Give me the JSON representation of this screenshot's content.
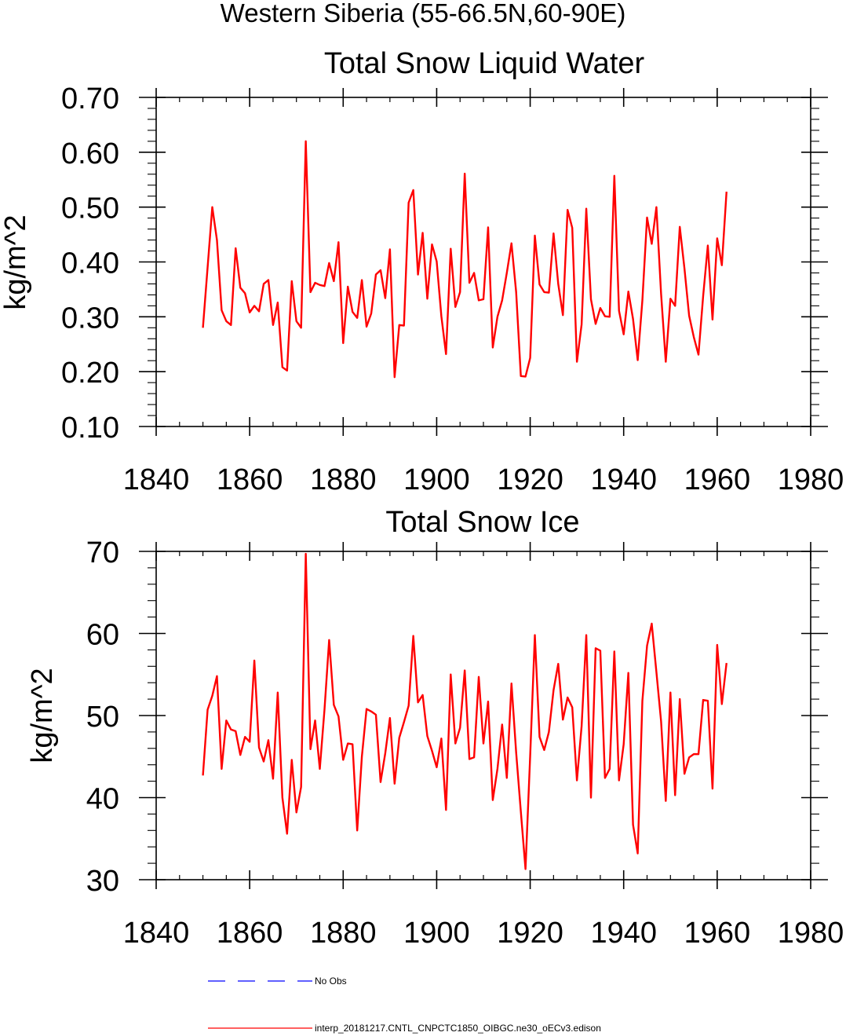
{
  "suptitle": "Western Siberia (55-66.5N,60-90E)",
  "colors": {
    "model": "#ff0000",
    "obs": "#0000ff",
    "axis": "#000000"
  },
  "legend": [
    {
      "label": "No Obs",
      "style": "dashed",
      "color": "#0000ff"
    },
    {
      "label": "interp_20181217.CNTL_CNPCTC1850_OIBGC.ne30_oECv3.edison",
      "style": "solid",
      "color": "#ff0000"
    }
  ],
  "chart_data": [
    {
      "type": "line",
      "title": "Total Snow Liquid Water",
      "xlabel": "",
      "ylabel": "kg/m^2",
      "xlim": [
        1840,
        1980
      ],
      "ylim": [
        0.1,
        0.7
      ],
      "xticks": [
        1840,
        1860,
        1880,
        1900,
        1920,
        1940,
        1960,
        1980
      ],
      "xtick_labels": [
        "1840",
        "1860",
        "1880",
        "1900",
        "1920",
        "1940",
        "1960",
        "1980"
      ],
      "yticks": [
        0.1,
        0.2,
        0.3,
        0.4,
        0.5,
        0.6,
        0.7
      ],
      "ytick_labels": [
        "0.10",
        "0.20",
        "0.30",
        "0.40",
        "0.50",
        "0.60",
        "0.70"
      ],
      "series": [
        {
          "name": "interp_20181217.CNTL_CNPCTC1850_OIBGC.ne30_oECv3.edison",
          "x": [
            1850,
            1851,
            1852,
            1853,
            1854,
            1855,
            1856,
            1857,
            1858,
            1859,
            1860,
            1861,
            1862,
            1863,
            1864,
            1865,
            1866,
            1867,
            1868,
            1869,
            1870,
            1871,
            1872,
            1873,
            1874,
            1875,
            1876,
            1877,
            1878,
            1879,
            1880,
            1881,
            1882,
            1883,
            1884,
            1885,
            1886,
            1887,
            1888,
            1889,
            1890,
            1891,
            1892,
            1893,
            1894,
            1895,
            1896,
            1897,
            1898,
            1899,
            1900,
            1901,
            1902,
            1903,
            1904,
            1905,
            1906,
            1907,
            1908,
            1909,
            1910,
            1911,
            1912,
            1913,
            1914,
            1915,
            1916,
            1917,
            1918,
            1919,
            1920,
            1921,
            1922,
            1923,
            1924,
            1925,
            1926,
            1927,
            1928,
            1929,
            1930,
            1931,
            1932,
            1933,
            1934,
            1935,
            1936,
            1937,
            1938,
            1939,
            1940,
            1941,
            1942,
            1943,
            1944,
            1945,
            1946,
            1947,
            1948,
            1949,
            1950,
            1951,
            1952,
            1953,
            1954,
            1955,
            1956,
            1957,
            1958,
            1959,
            1960,
            1961,
            1962
          ],
          "values": [
            0.28,
            0.39,
            0.5,
            0.44,
            0.312,
            0.292,
            0.285,
            0.425,
            0.353,
            0.343,
            0.308,
            0.32,
            0.31,
            0.36,
            0.367,
            0.285,
            0.326,
            0.208,
            0.202,
            0.365,
            0.292,
            0.28,
            0.62,
            0.345,
            0.362,
            0.358,
            0.356,
            0.398,
            0.365,
            0.436,
            0.252,
            0.355,
            0.309,
            0.298,
            0.367,
            0.282,
            0.306,
            0.377,
            0.385,
            0.334,
            0.423,
            0.19,
            0.285,
            0.284,
            0.508,
            0.531,
            0.377,
            0.453,
            0.333,
            0.432,
            0.401,
            0.301,
            0.232,
            0.424,
            0.318,
            0.345,
            0.561,
            0.362,
            0.38,
            0.33,
            0.332,
            0.463,
            0.244,
            0.3,
            0.33,
            0.38,
            0.434,
            0.345,
            0.192,
            0.191,
            0.225,
            0.448,
            0.359,
            0.345,
            0.344,
            0.452,
            0.36,
            0.303,
            0.495,
            0.462,
            0.218,
            0.286,
            0.497,
            0.332,
            0.287,
            0.316,
            0.301,
            0.3,
            0.557,
            0.311,
            0.268,
            0.346,
            0.296,
            0.221,
            0.33,
            0.481,
            0.433,
            0.5,
            0.342,
            0.218,
            0.333,
            0.32,
            0.464,
            0.388,
            0.302,
            0.263,
            0.231,
            0.338,
            0.43,
            0.295,
            0.443,
            0.394,
            0.528
          ]
        }
      ]
    },
    {
      "type": "line",
      "title": "Total Snow Ice",
      "xlabel": "",
      "ylabel": "kg/m^2",
      "xlim": [
        1840,
        1980
      ],
      "ylim": [
        30,
        70
      ],
      "xticks": [
        1840,
        1860,
        1880,
        1900,
        1920,
        1940,
        1960,
        1980
      ],
      "xtick_labels": [
        "1840",
        "1860",
        "1880",
        "1900",
        "1920",
        "1940",
        "1960",
        "1980"
      ],
      "yticks": [
        30,
        40,
        50,
        60,
        70
      ],
      "ytick_labels": [
        "30",
        "40",
        "50",
        "60",
        "70"
      ],
      "series": [
        {
          "name": "interp_20181217.CNTL_CNPCTC1850_OIBGC.ne30_oECv3.edison",
          "x": [
            1850,
            1851,
            1852,
            1853,
            1854,
            1855,
            1856,
            1857,
            1858,
            1859,
            1860,
            1861,
            1862,
            1863,
            1864,
            1865,
            1866,
            1867,
            1868,
            1869,
            1870,
            1871,
            1872,
            1873,
            1874,
            1875,
            1876,
            1877,
            1878,
            1879,
            1880,
            1881,
            1882,
            1883,
            1884,
            1885,
            1886,
            1887,
            1888,
            1889,
            1890,
            1891,
            1892,
            1893,
            1894,
            1895,
            1896,
            1897,
            1898,
            1899,
            1900,
            1901,
            1902,
            1903,
            1904,
            1905,
            1906,
            1907,
            1908,
            1909,
            1910,
            1911,
            1912,
            1913,
            1914,
            1915,
            1916,
            1917,
            1918,
            1919,
            1920,
            1921,
            1922,
            1923,
            1924,
            1925,
            1926,
            1927,
            1928,
            1929,
            1930,
            1931,
            1932,
            1933,
            1934,
            1935,
            1936,
            1937,
            1938,
            1939,
            1940,
            1941,
            1942,
            1943,
            1944,
            1945,
            1946,
            1947,
            1948,
            1949,
            1950,
            1951,
            1952,
            1953,
            1954,
            1955,
            1956,
            1957,
            1958,
            1959,
            1960,
            1961,
            1962
          ],
          "values": [
            42.7,
            50.7,
            52.4,
            54.8,
            43.5,
            49.4,
            48.3,
            48.1,
            45.2,
            47.4,
            46.8,
            56.7,
            46.1,
            44.4,
            47.0,
            42.3,
            52.8,
            40.0,
            35.6,
            44.6,
            38.2,
            41.3,
            69.7,
            45.9,
            49.4,
            43.5,
            50.7,
            59.2,
            51.3,
            49.9,
            44.6,
            46.6,
            46.5,
            36.0,
            45.0,
            50.8,
            50.5,
            50.1,
            41.9,
            45.4,
            49.7,
            41.7,
            47.3,
            49.2,
            51.2,
            59.7,
            51.6,
            52.5,
            47.5,
            45.7,
            43.7,
            47.2,
            38.5,
            55.0,
            46.6,
            48.5,
            55.5,
            44.7,
            44.9,
            54.7,
            46.6,
            51.7,
            39.7,
            43.5,
            48.9,
            42.4,
            53.9,
            45.5,
            38.3,
            31.3,
            45.1,
            59.8,
            47.4,
            45.8,
            48.0,
            53.1,
            56.3,
            49.5,
            52.2,
            51.0,
            42.1,
            48.7,
            59.8,
            40.0,
            58.2,
            57.9,
            42.4,
            43.5,
            57.8,
            42.1,
            46.5,
            55.2,
            36.7,
            33.2,
            51.8,
            58.5,
            61.2,
            55.3,
            49.3,
            39.6,
            52.8,
            40.3,
            52.0,
            42.9,
            44.9,
            45.3,
            45.3,
            51.9,
            51.8,
            41.1,
            58.6,
            51.4,
            56.4
          ]
        }
      ]
    }
  ]
}
